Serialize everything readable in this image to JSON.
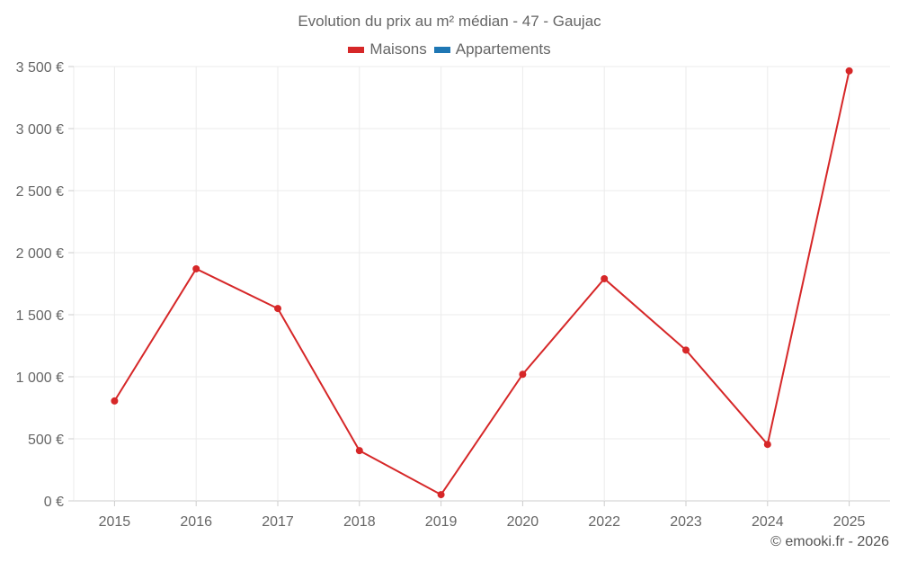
{
  "chart_data": {
    "type": "line",
    "title": "Evolution du prix au m² médian - 47 - Gaujac",
    "xlabel": "",
    "ylabel": "",
    "categories": [
      "2015",
      "2016",
      "2017",
      "2018",
      "2019",
      "2020",
      "2022",
      "2023",
      "2024",
      "2025"
    ],
    "series": [
      {
        "name": "Maisons",
        "color": "#d62728",
        "values": [
          805,
          1870,
          1550,
          405,
          50,
          1020,
          1790,
          1215,
          455,
          3465
        ]
      },
      {
        "name": "Appartements",
        "color": "#1f77b4",
        "values": []
      }
    ],
    "ylim": [
      0,
      3500
    ],
    "yticks": [
      0,
      500,
      1000,
      1500,
      2000,
      2500,
      3000,
      3500
    ],
    "ytick_labels": [
      "0 €",
      "500 €",
      "1 000 €",
      "1 500 €",
      "2 000 €",
      "2 500 €",
      "3 000 €",
      "3 500 €"
    ],
    "grid": true,
    "legend_position": "top"
  },
  "header": {
    "title": "Evolution du prix au m² médian - 47 - Gaujac"
  },
  "legend": {
    "items": [
      {
        "label": "Maisons",
        "color": "#d62728"
      },
      {
        "label": "Appartements",
        "color": "#1f77b4"
      }
    ]
  },
  "footer": {
    "credit": "© emooki.fr - 2026"
  }
}
